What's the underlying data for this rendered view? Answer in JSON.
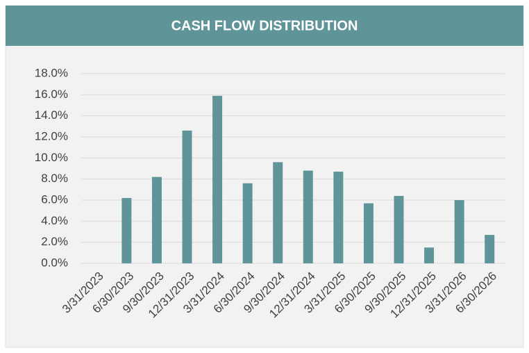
{
  "chart_data": {
    "type": "bar",
    "title": "CASH FLOW DISTRIBUTION",
    "categories": [
      "3/31/2023",
      "6/30/2023",
      "9/30/2023",
      "12/31/2023",
      "3/31/2024",
      "6/30/2024",
      "9/30/2024",
      "12/31/2024",
      "3/31/2025",
      "6/30/2025",
      "9/30/2025",
      "12/31/2025",
      "3/31/2026",
      "6/30/2026"
    ],
    "values": [
      0,
      6.2,
      8.2,
      12.6,
      15.9,
      7.6,
      9.6,
      8.8,
      8.7,
      5.7,
      6.4,
      1.5,
      6.0,
      2.7
    ],
    "color": "#5f9598",
    "ylim": [
      0,
      18
    ],
    "yticks": [
      {
        "value": 0,
        "label": "0.0%"
      },
      {
        "value": 2,
        "label": "2.0%"
      },
      {
        "value": 4,
        "label": "4.0%"
      },
      {
        "value": 6,
        "label": "6.0%"
      },
      {
        "value": 8,
        "label": "8.0%"
      },
      {
        "value": 10,
        "label": "10.0%"
      },
      {
        "value": 12,
        "label": "12.0%"
      },
      {
        "value": 14,
        "label": "14.0%"
      },
      {
        "value": 16,
        "label": "16.0%"
      },
      {
        "value": 18,
        "label": "18.0%"
      }
    ],
    "grid": true
  }
}
